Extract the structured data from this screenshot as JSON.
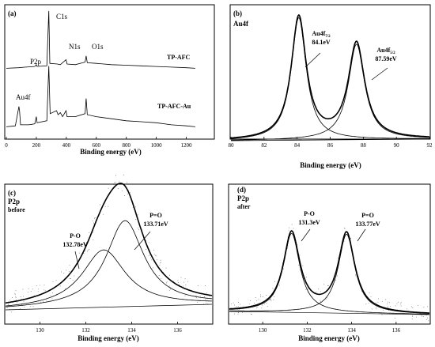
{
  "chart_data": [
    {
      "panel_label": "(a)",
      "type": "line",
      "xlabel": "Binding energy (eV)",
      "xlim": [
        0,
        1350
      ],
      "xticks": [
        0,
        200,
        400,
        600,
        800,
        1000,
        1200
      ],
      "ylim": [
        0,
        100
      ],
      "peak_labels": [
        "C1s",
        "N1s",
        "O1s",
        "P2p",
        "Au4f"
      ],
      "series": [
        {
          "name": "TP-AFC",
          "points": [
            [
              0,
              2
            ],
            [
              80,
              3
            ],
            [
              130,
              4
            ],
            [
              190,
              5
            ],
            [
              200,
              8
            ],
            [
              205,
              5
            ],
            [
              270,
              6
            ],
            [
              283,
              95
            ],
            [
              290,
              10
            ],
            [
              340,
              9
            ],
            [
              360,
              8
            ],
            [
              398,
              16
            ],
            [
              405,
              9
            ],
            [
              460,
              8
            ],
            [
              525,
              12
            ],
            [
              532,
              22
            ],
            [
              540,
              11
            ],
            [
              600,
              10
            ],
            [
              700,
              8
            ],
            [
              800,
              7
            ],
            [
              900,
              6
            ],
            [
              1000,
              5
            ],
            [
              1100,
              4
            ],
            [
              1200,
              3
            ],
            [
              1260,
              2
            ]
          ]
        },
        {
          "name": "TP-AFC-Au",
          "points": [
            [
              0,
              2
            ],
            [
              60,
              3
            ],
            [
              84,
              22
            ],
            [
              88,
              18
            ],
            [
              95,
              4
            ],
            [
              150,
              4
            ],
            [
              190,
              5
            ],
            [
              200,
              12
            ],
            [
              205,
              6
            ],
            [
              270,
              8
            ],
            [
              283,
              62
            ],
            [
              292,
              15
            ],
            [
              335,
              18
            ],
            [
              345,
              14
            ],
            [
              360,
              16
            ],
            [
              375,
              12
            ],
            [
              398,
              18
            ],
            [
              405,
              12
            ],
            [
              460,
              12
            ],
            [
              525,
              15
            ],
            [
              532,
              30
            ],
            [
              540,
              14
            ],
            [
              600,
              12
            ],
            [
              700,
              10
            ],
            [
              800,
              8
            ],
            [
              900,
              7
            ],
            [
              1000,
              6
            ],
            [
              1100,
              4
            ],
            [
              1200,
              3
            ],
            [
              1260,
              2
            ]
          ]
        }
      ]
    },
    {
      "panel_label": "(b)",
      "type": "line",
      "region": "Au4f",
      "xlabel": "Binding energy (eV)",
      "xlim": [
        80,
        92
      ],
      "xticks": [
        80,
        82,
        84,
        86,
        88,
        90,
        92
      ],
      "peaks": [
        {
          "label": "Au4f",
          "subscript": "7/2",
          "value_label": "84.1eV",
          "center": 84.1,
          "height": 1.0,
          "width": 0.55
        },
        {
          "label": "Au4f",
          "subscript": "5/2",
          "value_label": "87.59eV",
          "center": 87.59,
          "height": 0.78,
          "width": 0.6
        }
      ]
    },
    {
      "panel_label": "(c)",
      "type": "line",
      "region": "P2p",
      "state": "before",
      "xlabel": "Binding energy (eV)",
      "xlim": [
        128.5,
        137.5
      ],
      "xticks": [
        130,
        132,
        134,
        136
      ],
      "peaks": [
        {
          "label": "P-O",
          "value_label": "132.78eV",
          "center": 132.78,
          "height": 0.5,
          "width": 1.15
        },
        {
          "label": "P=O",
          "value_label": "133.71eV",
          "center": 133.71,
          "height": 0.75,
          "width": 1.0
        }
      ]
    },
    {
      "panel_label": "(d)",
      "type": "line",
      "region": "P2p",
      "state": "after",
      "xlabel": "Binding energy (eV)",
      "xlim": [
        128.5,
        137.5
      ],
      "xticks": [
        130,
        132,
        134,
        136
      ],
      "peaks": [
        {
          "label": "P-O",
          "value_label": "131.3eV",
          "center": 131.3,
          "height": 1.0,
          "width": 0.45
        },
        {
          "label": "P=O",
          "value_label": "133.77eV",
          "center": 133.77,
          "height": 1.0,
          "width": 0.45
        }
      ]
    }
  ]
}
